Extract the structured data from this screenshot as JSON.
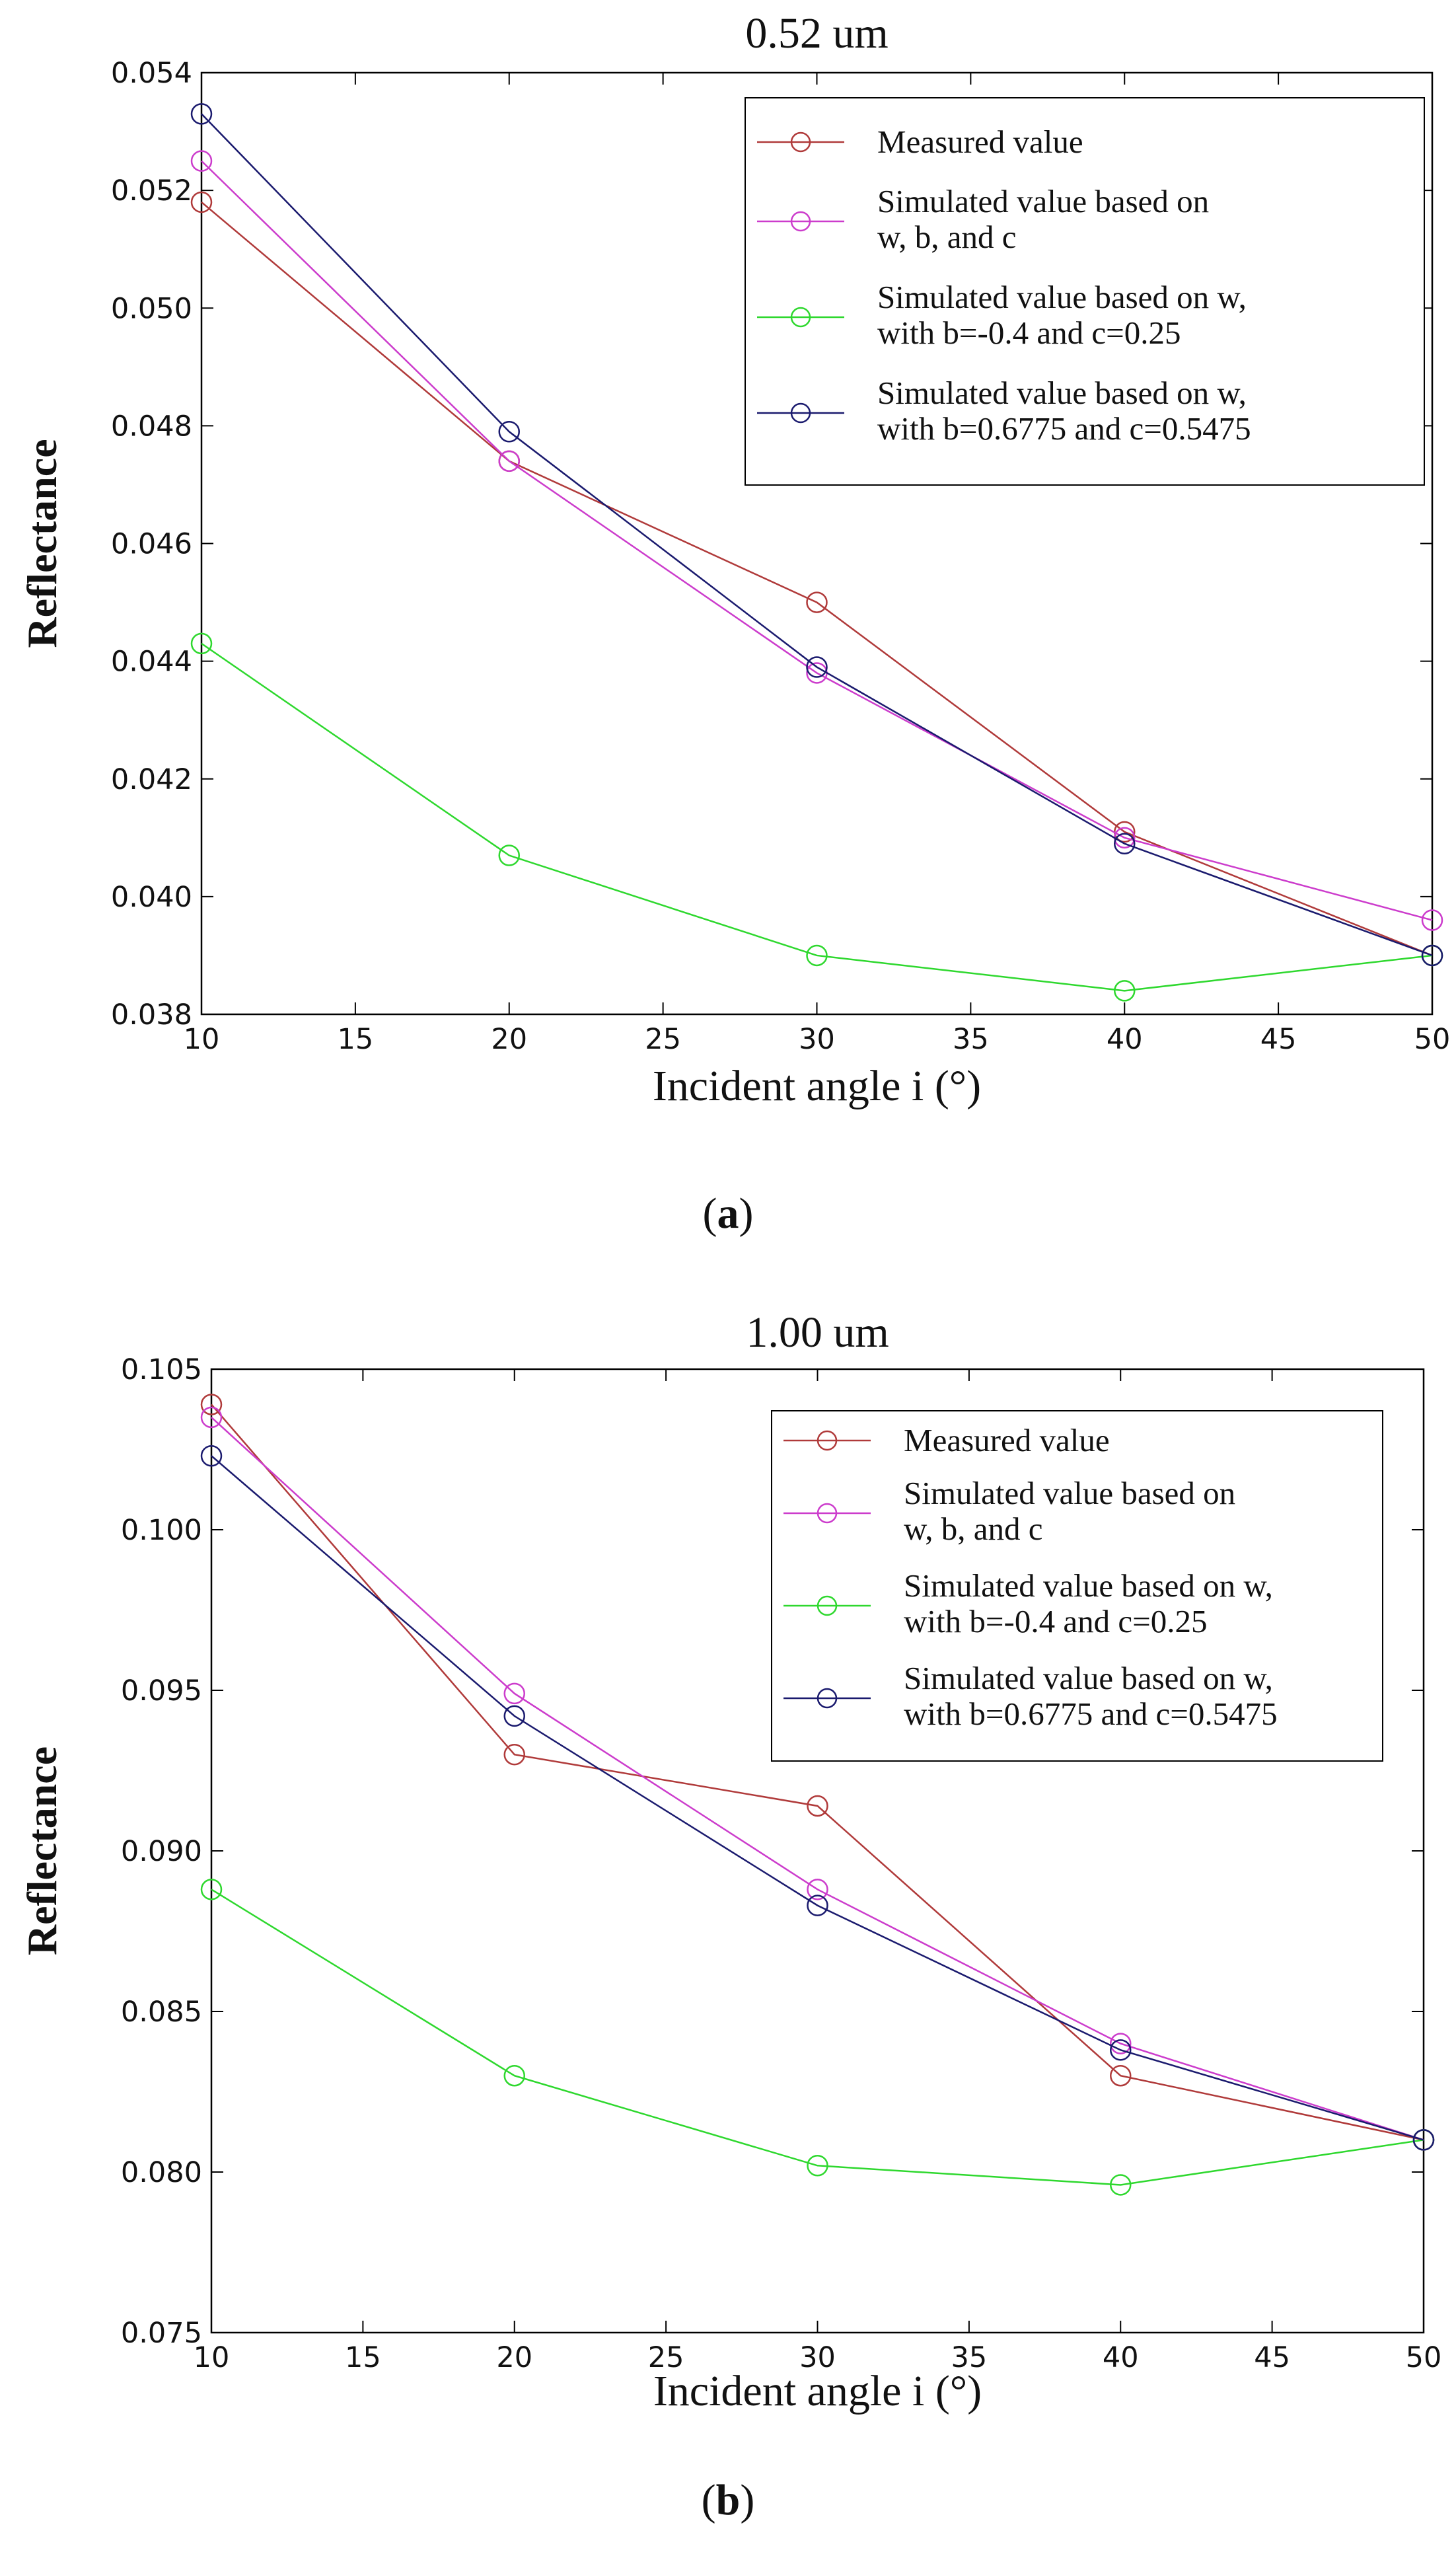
{
  "chart_data": [
    {
      "type": "line",
      "title": "0.52 um",
      "xlabel": "Incident angle i (°)",
      "ylabel": "Reflectance",
      "caption_letter": "a",
      "x": [
        10,
        20,
        30,
        40,
        50
      ],
      "xlim": [
        10,
        50
      ],
      "ylim": [
        0.038,
        0.054
      ],
      "x_ticks": [
        "10",
        "15",
        "20",
        "25",
        "30",
        "35",
        "40",
        "45",
        "50"
      ],
      "y_ticks": [
        "0.038",
        "0.040",
        "0.042",
        "0.044",
        "0.046",
        "0.048",
        "0.050",
        "0.052",
        "0.054"
      ],
      "legend": {
        "position": "top-right",
        "entries": [
          [
            "Measured value"
          ],
          [
            "Simulated value based on",
            "w, b, and c"
          ],
          [
            "Simulated value based on w,",
            "with b=-0.4 and c=0.25"
          ],
          [
            "Simulated value based on w,",
            "with b=0.6775 and c=0.5475"
          ]
        ]
      },
      "series": [
        {
          "name": "Measured value",
          "color": "#b03a3a",
          "values": [
            0.0518,
            0.0474,
            0.045,
            0.0411,
            0.039
          ]
        },
        {
          "name": "Simulated value based on w, b, and c",
          "color": "#cc3ccc",
          "values": [
            0.0525,
            0.0474,
            0.0438,
            0.041,
            0.0396
          ]
        },
        {
          "name": "Simulated value based on w, with b=-0.4 and c=0.25",
          "color": "#2ed82e",
          "values": [
            0.0443,
            0.0407,
            0.039,
            0.0384,
            0.039
          ]
        },
        {
          "name": "Simulated value based on w, with b=0.6775 and c=0.5475",
          "color": "#1a1a6e",
          "values": [
            0.0533,
            0.0479,
            0.0439,
            0.0409,
            0.039
          ]
        }
      ]
    },
    {
      "type": "line",
      "title": "1.00 um",
      "xlabel": "Incident angle i (°)",
      "ylabel": "Reflectance",
      "caption_letter": "b",
      "x": [
        10,
        20,
        30,
        40,
        50
      ],
      "xlim": [
        10,
        50
      ],
      "ylim": [
        0.075,
        0.105
      ],
      "x_ticks": [
        "10",
        "15",
        "20",
        "25",
        "30",
        "35",
        "40",
        "45",
        "50"
      ],
      "y_ticks": [
        "0.075",
        "0.080",
        "0.085",
        "0.090",
        "0.095",
        "0.100",
        "0.105"
      ],
      "legend": {
        "position": "top-right",
        "entries": [
          [
            "Measured value"
          ],
          [
            "Simulated value based on",
            "w, b, and c"
          ],
          [
            "Simulated value based on w,",
            "with b=-0.4 and c=0.25"
          ],
          [
            "Simulated value based on w,",
            "with b=0.6775 and c=0.5475"
          ]
        ]
      },
      "series": [
        {
          "name": "Measured value",
          "color": "#b03a3a",
          "values": [
            0.1039,
            0.093,
            0.0914,
            0.083,
            0.081
          ]
        },
        {
          "name": "Simulated value based on w, b, and c",
          "color": "#cc3ccc",
          "values": [
            0.1035,
            0.0949,
            0.0888,
            0.084,
            0.081
          ]
        },
        {
          "name": "Simulated value based on w, with b=-0.4 and c=0.25",
          "color": "#2ed82e",
          "values": [
            0.0888,
            0.083,
            0.0802,
            0.0796,
            0.081
          ]
        },
        {
          "name": "Simulated value based on w, with b=0.6775 and c=0.5475",
          "color": "#1a1a6e",
          "values": [
            0.1023,
            0.0942,
            0.0883,
            0.0838,
            0.081
          ]
        }
      ]
    }
  ]
}
